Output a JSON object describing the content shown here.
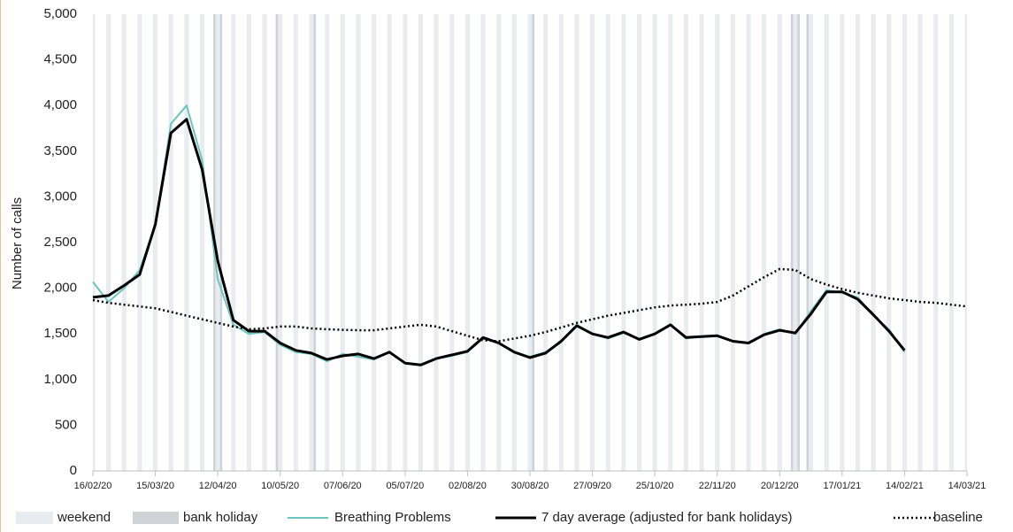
{
  "chart_data": {
    "type": "line",
    "y_label": "Number of calls",
    "weekend_label": "weekend",
    "bank_holiday_label": "bank holiday",
    "weekend_color": "#e8ebef",
    "bank_holiday_color": "#cfd3d8",
    "bank_holidays": [
      "10/04/20",
      "13/04/20",
      "08/05/20",
      "25/05/20",
      "31/08/20",
      "25/12/20",
      "28/12/20",
      "01/01/21"
    ],
    "x": [
      "16/02/20",
      "23/02/20",
      "01/03/20",
      "08/03/20",
      "15/03/20",
      "22/03/20",
      "29/03/20",
      "05/04/20",
      "12/04/20",
      "19/04/20",
      "26/04/20",
      "03/05/20",
      "10/05/20",
      "17/05/20",
      "24/05/20",
      "31/05/20",
      "07/06/20",
      "14/06/20",
      "21/06/20",
      "28/06/20",
      "05/07/20",
      "12/07/20",
      "19/07/20",
      "26/07/20",
      "02/08/20",
      "09/08/20",
      "16/08/20",
      "23/08/20",
      "30/08/20",
      "06/09/20",
      "13/09/20",
      "20/09/20",
      "27/09/20",
      "04/10/20",
      "11/10/20",
      "18/10/20",
      "25/10/20",
      "01/11/20",
      "08/11/20",
      "15/11/20",
      "22/11/20",
      "29/11/20",
      "06/12/20",
      "13/12/20",
      "20/12/20",
      "27/12/20",
      "03/01/21",
      "10/01/21",
      "17/01/21",
      "24/01/21",
      "31/01/21",
      "07/02/21",
      "14/02/21",
      "21/02/21",
      "28/02/21",
      "07/03/21",
      "14/03/21"
    ],
    "series": [
      {
        "name": "Breathing Problems",
        "color": "#6cc5bf",
        "style": "solid",
        "width": 2,
        "values": [
          2070,
          1850,
          2000,
          2200,
          2700,
          3800,
          4000,
          3400,
          2100,
          1600,
          1500,
          1520,
          1380,
          1300,
          1280,
          1200,
          1280,
          1250,
          1220,
          1300,
          1180,
          1160,
          1230,
          1260,
          1300,
          1450,
          1400,
          1300,
          1250,
          1300,
          1420,
          1600,
          1500,
          1450,
          1510,
          1440,
          1500,
          1600,
          1450,
          1470,
          1480,
          1420,
          1400,
          1500,
          1550,
          1500,
          1750,
          1980,
          1950,
          1900,
          1700,
          1550,
          1300,
          null,
          null,
          null,
          null
        ]
      },
      {
        "name": "7 day average (adjusted for bank holidays)",
        "color": "#000000",
        "style": "solid",
        "width": 3,
        "values": [
          1900,
          1920,
          2030,
          2150,
          2700,
          3700,
          3850,
          3300,
          2300,
          1650,
          1530,
          1530,
          1400,
          1320,
          1290,
          1220,
          1260,
          1280,
          1230,
          1300,
          1180,
          1160,
          1230,
          1270,
          1310,
          1460,
          1400,
          1300,
          1240,
          1290,
          1420,
          1590,
          1500,
          1460,
          1520,
          1440,
          1500,
          1600,
          1460,
          1470,
          1480,
          1420,
          1400,
          1490,
          1540,
          1510,
          1720,
          1960,
          1960,
          1880,
          1710,
          1530,
          1320,
          null,
          null,
          null,
          null
        ]
      },
      {
        "name": "baseline",
        "color": "#000000",
        "style": "dotted",
        "width": 2.5,
        "values": [
          1870,
          1840,
          1820,
          1800,
          1780,
          1740,
          1700,
          1660,
          1620,
          1580,
          1550,
          1560,
          1580,
          1580,
          1560,
          1550,
          1545,
          1540,
          1540,
          1560,
          1580,
          1600,
          1580,
          1530,
          1480,
          1430,
          1420,
          1450,
          1480,
          1520,
          1570,
          1620,
          1660,
          1700,
          1730,
          1760,
          1790,
          1810,
          1820,
          1830,
          1850,
          1920,
          2020,
          2120,
          2210,
          2200,
          2100,
          2040,
          1990,
          1950,
          1920,
          1890,
          1870,
          1850,
          1840,
          1820,
          1800
        ]
      }
    ],
    "xlim": [
      "16/02/20",
      "14/03/21"
    ],
    "xticks": [
      "16/02/20",
      "15/03/20",
      "12/04/20",
      "10/05/20",
      "07/06/20",
      "05/07/20",
      "02/08/20",
      "30/08/20",
      "27/09/20",
      "25/10/20",
      "22/11/20",
      "20/12/20",
      "17/01/21",
      "14/02/21",
      "14/03/21"
    ],
    "ylim": [
      0,
      5000
    ],
    "yticks": [
      0,
      500,
      {
        "value": 1000,
        "label": "1,000"
      },
      {
        "value": 1500,
        "label": "1,500"
      },
      {
        "value": 2000,
        "label": "2,000"
      },
      {
        "value": 2500,
        "label": "2,500"
      },
      {
        "value": 3000,
        "label": "3,000"
      },
      {
        "value": 3500,
        "label": "3,500"
      },
      {
        "value": 4000,
        "label": "4,000"
      },
      {
        "value": 4500,
        "label": "4,500"
      },
      {
        "value": 5000,
        "label": "5,000"
      }
    ]
  }
}
